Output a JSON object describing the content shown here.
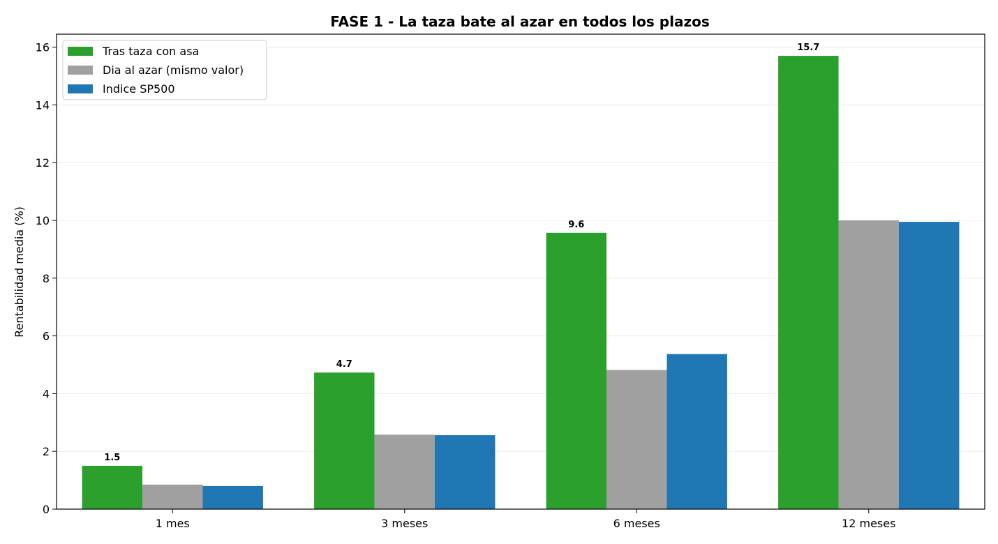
{
  "chart_data": {
    "type": "bar",
    "title": "FASE 1 - La taza bate al azar en todos los plazos",
    "xlabel": "",
    "ylabel": "Rentabilidad media (%)",
    "categories": [
      "1 mes",
      "3 meses",
      "6 meses",
      "12 meses"
    ],
    "ylim": [
      0,
      16.45
    ],
    "yticks": [
      0,
      2,
      4,
      6,
      8,
      10,
      12,
      14,
      16
    ],
    "grid": "horizontal",
    "legend_position": "top-left",
    "series": [
      {
        "name": "Tras taza con asa",
        "color": "#2ca02c",
        "values": [
          1.5,
          4.73,
          9.57,
          15.7
        ],
        "data_labels": [
          "1.5",
          "4.7",
          "9.6",
          "15.7"
        ]
      },
      {
        "name": "Dia al azar (mismo valor)",
        "color": "#a0a0a0",
        "values": [
          0.85,
          2.58,
          4.82,
          10.0
        ],
        "data_labels": []
      },
      {
        "name": "Indice SP500",
        "color": "#1f77b4",
        "values": [
          0.8,
          2.56,
          5.37,
          9.95
        ],
        "data_labels": []
      }
    ]
  }
}
